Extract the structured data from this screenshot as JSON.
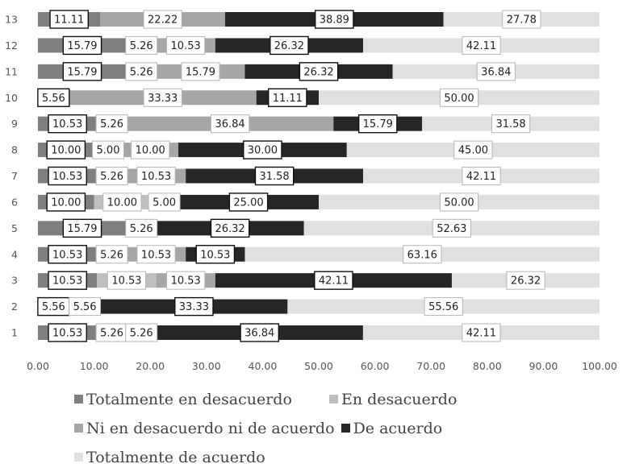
{
  "chart_data": {
    "type": "bar",
    "orientation": "horizontal",
    "stacked": true,
    "title": "",
    "xlabel": "",
    "ylabel": "",
    "xlim": [
      0,
      100
    ],
    "x_ticks": [
      "0.00",
      "10.00",
      "20.00",
      "30.00",
      "40.00",
      "50.00",
      "60.00",
      "70.00",
      "80.00",
      "90.00",
      "100.00"
    ],
    "grid": false,
    "legend_position": "bottom",
    "categories": [
      "1",
      "2",
      "3",
      "4",
      "5",
      "6",
      "7",
      "8",
      "9",
      "10",
      "11",
      "12",
      "13"
    ],
    "series": [
      {
        "name": "Totalmente en desacuerdo",
        "color": "#7f7f7f",
        "values": [
          10.53,
          5.56,
          10.53,
          10.53,
          15.79,
          10.0,
          10.53,
          10.0,
          10.53,
          5.56,
          15.79,
          15.79,
          11.11
        ],
        "labels": [
          "10.53",
          "5.56",
          "10.53",
          "10.53",
          "15.79",
          "10.00",
          "10.53",
          "10.00",
          "10.53",
          "5.56",
          "15.79",
          "15.79",
          "11.11"
        ]
      },
      {
        "name": "En desacuerdo",
        "color": "#bfbfbf",
        "values": [
          5.26,
          5.56,
          10.53,
          5.26,
          0,
          10.0,
          5.26,
          5.0,
          5.26,
          0,
          5.26,
          5.26,
          0
        ],
        "labels": [
          "5.26",
          "5.56",
          "10.53",
          "5.26",
          "",
          "10.00",
          "5.26",
          "5.00",
          "5.26",
          "",
          "5.26",
          "5.26",
          ""
        ]
      },
      {
        "name": "Ni en desacuerdo ni de acuerdo",
        "color": "#a6a6a6",
        "values": [
          5.26,
          0,
          10.53,
          10.53,
          5.26,
          5.0,
          10.53,
          10.0,
          36.84,
          33.33,
          15.79,
          10.53,
          22.22
        ],
        "labels": [
          "5.26",
          "",
          "10.53",
          "10.53",
          "5.26",
          "5.00",
          "10.53",
          "10.00",
          "36.84",
          "33.33",
          "15.79",
          "10.53",
          "22.22"
        ]
      },
      {
        "name": "De acuerdo",
        "color": "#262626",
        "values": [
          36.84,
          33.33,
          42.11,
          10.53,
          26.32,
          25.0,
          31.58,
          30.0,
          15.79,
          11.11,
          26.32,
          26.32,
          38.89
        ],
        "labels": [
          "36.84",
          "33.33",
          "42.11",
          "10.53",
          "26.32",
          "25.00",
          "31.58",
          "30.00",
          "15.79",
          "11.11",
          "26.32",
          "26.32",
          "38.89"
        ]
      },
      {
        "name": "Totalmente de acuerdo",
        "color": "#e0e0e0",
        "values": [
          42.11,
          55.56,
          26.32,
          63.16,
          52.63,
          50.0,
          42.11,
          45.0,
          31.58,
          50.0,
          36.84,
          42.11,
          27.78
        ],
        "labels": [
          "42.11",
          "55.56",
          "26.32",
          "63.16",
          "52.63",
          "50.00",
          "42.11",
          "45.00",
          "31.58",
          "50.00",
          "36.84",
          "42.11",
          "27.78"
        ]
      }
    ]
  }
}
